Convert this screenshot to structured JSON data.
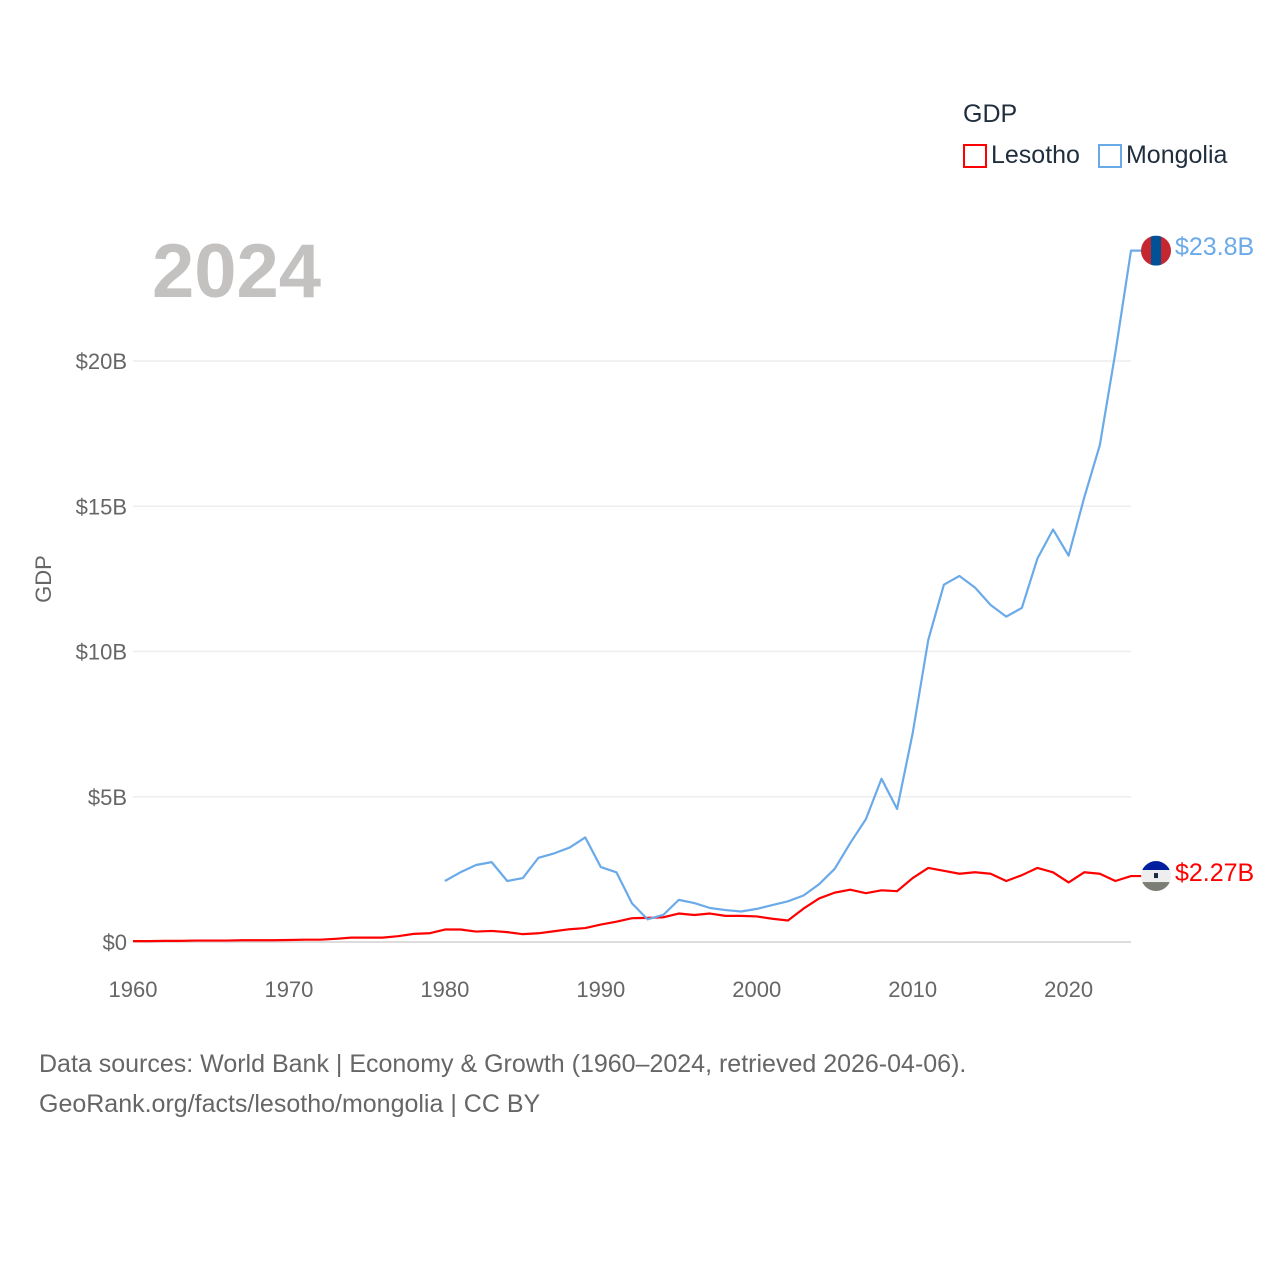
{
  "chart_data": {
    "type": "line",
    "ylabel": "GDP",
    "xlabel": "",
    "year_label": "2024",
    "legend": {
      "title": "GDP",
      "placement": "top-right"
    },
    "xlim": [
      1960,
      2024
    ],
    "ylim": [
      0,
      23.8
    ],
    "x_ticks": [
      "1960",
      "1970",
      "1980",
      "1990",
      "2000",
      "2010",
      "2020"
    ],
    "x_tick_values": [
      1960,
      1970,
      1980,
      1990,
      2000,
      2010,
      2020
    ],
    "y_ticks": [
      "$0",
      "$5B",
      "$10B",
      "$15B",
      "$20B"
    ],
    "y_tick_values": [
      0,
      5,
      10,
      15,
      20
    ],
    "units": "billion USD",
    "series": [
      {
        "name": "Lesotho",
        "color": "#ff0000",
        "end_label": "$2.27B",
        "flag": "lesotho-flag",
        "x": [
          1960,
          1961,
          1962,
          1963,
          1964,
          1965,
          1966,
          1967,
          1968,
          1969,
          1970,
          1971,
          1972,
          1973,
          1974,
          1975,
          1976,
          1977,
          1978,
          1979,
          1980,
          1981,
          1982,
          1983,
          1984,
          1985,
          1986,
          1987,
          1988,
          1989,
          1990,
          1991,
          1992,
          1993,
          1994,
          1995,
          1996,
          1997,
          1998,
          1999,
          2000,
          2001,
          2002,
          2003,
          2004,
          2005,
          2006,
          2007,
          2008,
          2009,
          2010,
          2011,
          2012,
          2013,
          2014,
          2015,
          2016,
          2017,
          2018,
          2019,
          2020,
          2021,
          2022,
          2023,
          2024
        ],
        "values": [
          0.03,
          0.03,
          0.04,
          0.04,
          0.05,
          0.05,
          0.05,
          0.06,
          0.06,
          0.06,
          0.07,
          0.08,
          0.08,
          0.11,
          0.15,
          0.15,
          0.15,
          0.2,
          0.28,
          0.3,
          0.43,
          0.43,
          0.36,
          0.38,
          0.34,
          0.27,
          0.3,
          0.37,
          0.44,
          0.48,
          0.6,
          0.7,
          0.82,
          0.83,
          0.85,
          0.98,
          0.93,
          0.98,
          0.9,
          0.9,
          0.88,
          0.8,
          0.74,
          1.15,
          1.5,
          1.7,
          1.8,
          1.68,
          1.78,
          1.75,
          2.2,
          2.55,
          2.45,
          2.35,
          2.4,
          2.35,
          2.1,
          2.3,
          2.55,
          2.4,
          2.05,
          2.4,
          2.35,
          2.1,
          2.27
        ]
      },
      {
        "name": "Mongolia",
        "color": "#6aaae8",
        "end_label": "$23.8B",
        "flag": "mongolia-flag",
        "x": [
          1980,
          1981,
          1982,
          1983,
          1984,
          1985,
          1986,
          1987,
          1988,
          1989,
          1990,
          1991,
          1992,
          1993,
          1994,
          1995,
          1996,
          1997,
          1998,
          1999,
          2000,
          2001,
          2002,
          2003,
          2004,
          2005,
          2006,
          2007,
          2008,
          2009,
          2010,
          2011,
          2012,
          2013,
          2014,
          2015,
          2016,
          2017,
          2018,
          2019,
          2020,
          2021,
          2022,
          2023,
          2024
        ],
        "values": [
          2.1,
          2.4,
          2.65,
          2.75,
          2.1,
          2.2,
          2.9,
          3.05,
          3.25,
          3.6,
          2.58,
          2.4,
          1.33,
          0.78,
          0.93,
          1.45,
          1.34,
          1.17,
          1.1,
          1.05,
          1.14,
          1.27,
          1.4,
          1.6,
          1.99,
          2.52,
          3.41,
          4.23,
          5.62,
          4.58,
          7.19,
          10.4,
          12.3,
          12.6,
          12.2,
          11.6,
          11.2,
          11.5,
          13.2,
          14.2,
          13.3,
          15.3,
          17.1,
          20.3,
          23.8
        ]
      }
    ]
  },
  "footer": {
    "line1": "Data sources: World Bank | Economy & Growth (1960–2024, retrieved 2026-04-06).",
    "line2": "GeoRank.org/facts/lesotho/mongolia | CC BY"
  }
}
